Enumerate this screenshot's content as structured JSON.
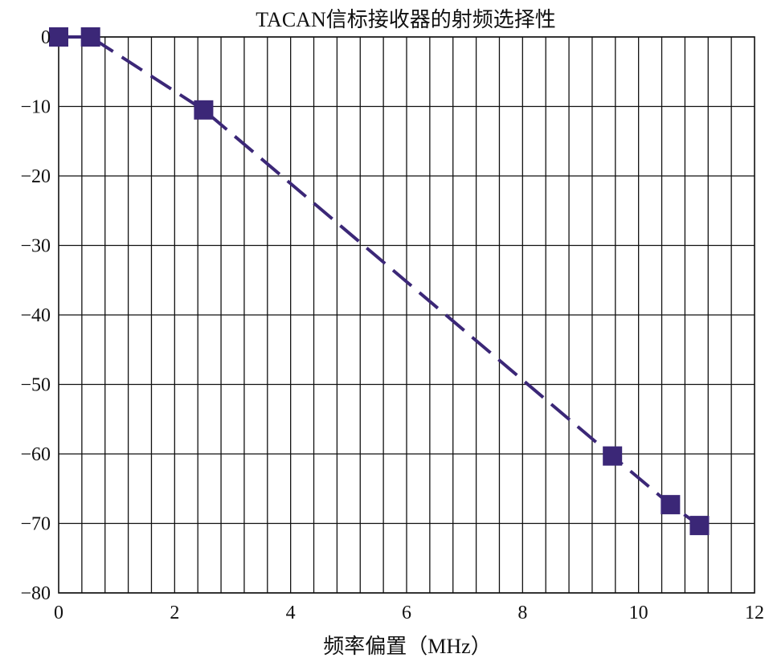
{
  "chart_data": {
    "type": "line",
    "title": "TACAN信标接收器的射频选择性",
    "xlabel": "频率偏置（MHz）",
    "ylabel": "",
    "xlim": [
      0,
      12
    ],
    "ylim": [
      -80,
      0
    ],
    "x_ticks": [
      0,
      2,
      4,
      6,
      8,
      10,
      12
    ],
    "y_ticks": [
      0,
      -10,
      -20,
      -30,
      -40,
      -50,
      -60,
      -70,
      -80
    ],
    "x_tick_labels": [
      "0",
      "2",
      "4",
      "6",
      "8",
      "10",
      "12"
    ],
    "y_tick_labels": [
      "0",
      "−10",
      "−20",
      "−30",
      "−40",
      "−50",
      "−60",
      "−70",
      "−80"
    ],
    "x_minor_step": 0.4,
    "grid": true,
    "line_style": "dashed",
    "marker": "square",
    "series": [
      {
        "x": [
          0.0,
          0.55,
          2.5,
          9.55,
          10.55,
          11.05
        ],
        "y": [
          0,
          0,
          -10.5,
          -60.3,
          -67.3,
          -70.3
        ],
        "color": "#3b2777"
      }
    ]
  }
}
